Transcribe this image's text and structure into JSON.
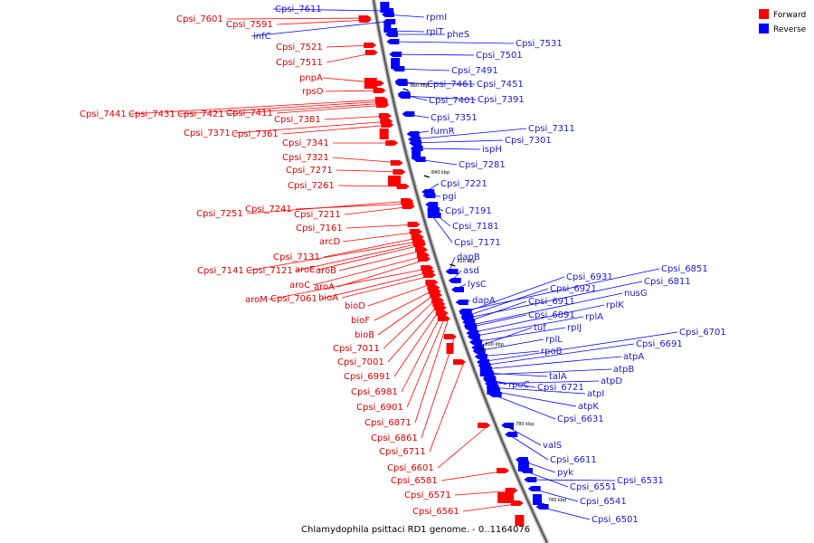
{
  "title": "Chlamydophila psittaci RD1 genome. - 0..1164076",
  "legend": [
    {
      "label": "Forward",
      "color": "#ff0000"
    },
    {
      "label": "Reverse",
      "color": "#0000ff"
    }
  ],
  "colors": {
    "forward": "#ff0000",
    "reverse": "#0000ff",
    "forward_text": "#dd0000",
    "reverse_text": "#1a1acc"
  },
  "kbp_markers": [
    "860 kbp",
    "840 kbp",
    "820 kbp",
    "800 kbp",
    "780 kbp",
    "760 kbp"
  ],
  "forward_labels": [
    "Cpsi_7601",
    "Cpsi_7591",
    "Cpsi_7521",
    "Cpsi_7511",
    "pnpA",
    "rpsO",
    "Cpsi_7441",
    "Cpsi_7431",
    "Cpsi_7421",
    "Cpsi_7411",
    "Cpsi_7381",
    "Cpsi_7371",
    "Cpsi_7361",
    "Cpsi_7341",
    "Cpsi_7321",
    "Cpsi_7271",
    "Cpsi_7261",
    "Cpsi_7251",
    "Cpsi_7241",
    "Cpsi_7211",
    "Cpsi_7161",
    "arcD",
    "Cpsi_7131",
    "Cpsi_7141",
    "Cpsi_7121",
    "aroE",
    "aroB",
    "aroC",
    "aroA",
    "aroM",
    "Cpsi_7061",
    "bioA",
    "bioD",
    "bioF",
    "bioB",
    "Cpsi_7011",
    "Cpsi_7001",
    "Cpsi_6991",
    "Cpsi_6981",
    "Cpsi_6901",
    "Cpsi_6871",
    "Cpsi_6861",
    "Cpsi_6711",
    "Cpsi_6601",
    "Cpsi_6581",
    "Cpsi_6571",
    "Cpsi_6561"
  ],
  "reverse_labels": [
    "Cpsi_7611",
    "infC",
    "rpmI",
    "rplT",
    "pheS",
    "Cpsi_7531",
    "Cpsi_7501",
    "Cpsi_7491",
    "Cpsi_7461",
    "Cpsi_7451",
    "Cpsi_7401",
    "Cpsi_7391",
    "Cpsi_7351",
    "fumR",
    "Cpsi_7311",
    "Cpsi_7301",
    "ispH",
    "Cpsi_7281",
    "Cpsi_7221",
    "pgi",
    "Cpsi_7191",
    "Cpsi_7181",
    "Cpsi_7171",
    "dapB",
    "asd",
    "lysC",
    "dapA",
    "Cpsi_6931",
    "Cpsi_6851",
    "Cpsi_6921",
    "Cpsi_6811",
    "Cpsi_6911",
    "nusG",
    "Cpsi_6891",
    "rplK",
    "rplA",
    "rplJ",
    "tuf",
    "rplL",
    "rpoB",
    "Cpsi_6701",
    "Cpsi_6691",
    "atpA",
    "talA",
    "atpB",
    "rpoC",
    "Cpsi_6721",
    "atpD",
    "atpI",
    "atpK",
    "Cpsi_6631",
    "valS",
    "Cpsi_6611",
    "pyk",
    "Cpsi_6551",
    "Cpsi_6531",
    "Cpsi_6541",
    "Cpsi_6501"
  ]
}
